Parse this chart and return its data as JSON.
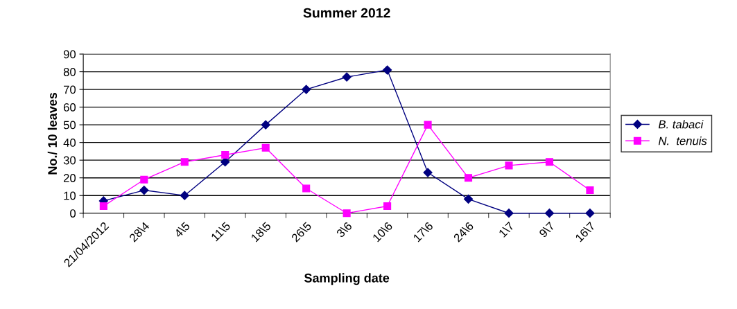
{
  "chart_data": {
    "type": "line",
    "title": "Summer 2012",
    "xlabel": "Sampling date",
    "ylabel": "No./ 10 leaves",
    "categories": [
      "21/04/2012",
      "28\\4",
      "4\\5",
      "11\\5",
      "18\\5",
      "26\\5",
      "3\\6",
      "10\\6",
      "17\\6",
      "24\\6",
      "1\\7",
      "9\\7",
      "16\\7"
    ],
    "series": [
      {
        "name": "B. tabaci",
        "color": "#000080",
        "marker": "diamond",
        "values": [
          7,
          13,
          10,
          29,
          50,
          70,
          77,
          81,
          23,
          8,
          0,
          0,
          0
        ]
      },
      {
        "name": "N.  tenuis",
        "color": "#ff00ff",
        "marker": "square",
        "values": [
          4,
          19,
          29,
          33,
          37,
          14,
          0,
          4,
          50,
          20,
          27,
          29,
          13
        ]
      }
    ],
    "ylim": [
      0,
      90
    ],
    "yticks": [
      0,
      10,
      20,
      30,
      40,
      50,
      60,
      70,
      80,
      90
    ],
    "grid": "y",
    "legend": "right"
  }
}
